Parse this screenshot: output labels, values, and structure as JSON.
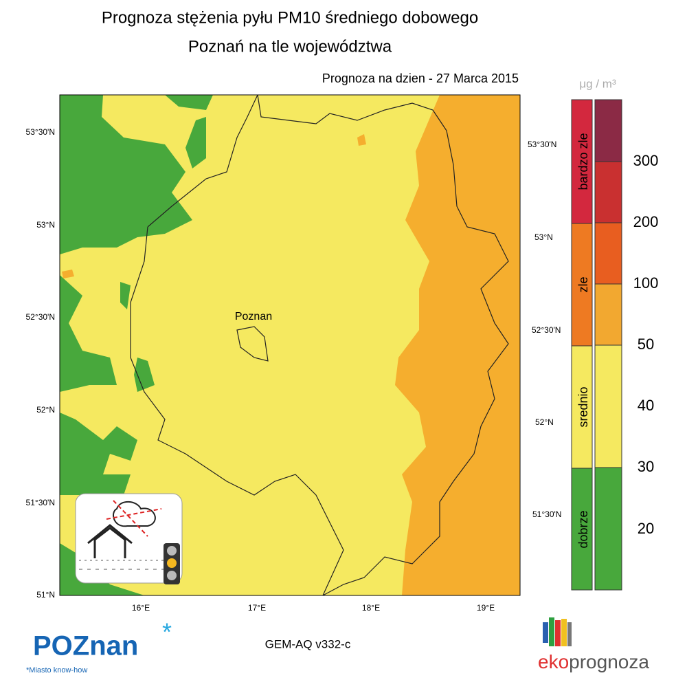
{
  "header": {
    "title_line1": "Prognoza stężenia pyłu PM10 średniego dobowego",
    "title_line2": "Poznań na tle województwa",
    "forecast": "Prognoza na dzien -  27 Marca 2015"
  },
  "map": {
    "city": "Poznan",
    "lat_left": [
      "53°30'N",
      "53°N",
      "52°30'N",
      "52°N",
      "51°30'N",
      "51°N"
    ],
    "lat_right": [
      "53°30'N",
      "53°N",
      "52°30'N",
      "52°N",
      "51°30'N"
    ],
    "lon_bottom": [
      "16°E",
      "17°E",
      "18°E",
      "19°E"
    ],
    "model": "GEM-AQ v332-c"
  },
  "legend": {
    "unit": "μg / m³",
    "categories": [
      "bardzo zle",
      "zle",
      "srednio",
      "dobrze"
    ],
    "thresholds": [
      "300",
      "200",
      "100",
      "50",
      "40",
      "30",
      "20"
    ]
  },
  "logos": {
    "poznan": "POZnan",
    "poznan_tagline": "*Miasto know-how",
    "eko": "eko",
    "prognoza": "prognoza"
  }
}
